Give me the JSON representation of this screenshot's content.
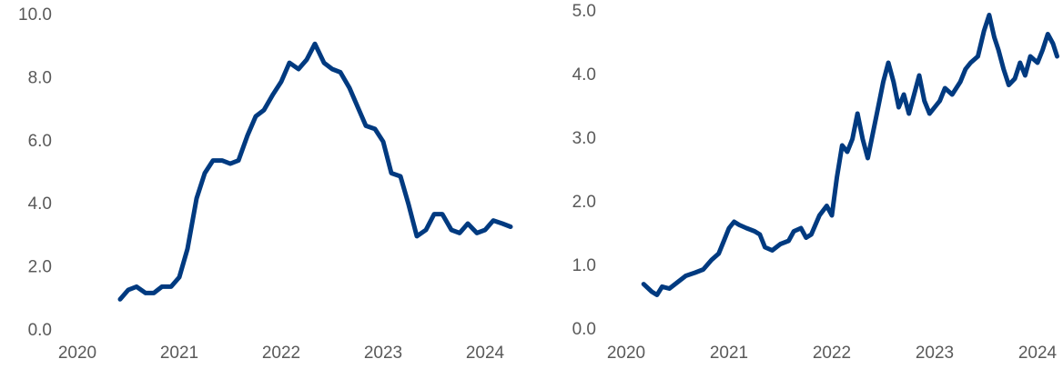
{
  "chart_data": [
    {
      "type": "line",
      "color": "#003a80",
      "xlim": [
        2020,
        2024.3
      ],
      "xticks": [
        2020,
        2021,
        2022,
        2023,
        2024
      ],
      "ylim": [
        0,
        10
      ],
      "yticks": [
        {
          "value": 0,
          "label": "0.0"
        },
        {
          "value": 2,
          "label": "2.0"
        },
        {
          "value": 4,
          "label": "4.0"
        },
        {
          "value": 6,
          "label": "6.0"
        },
        {
          "value": 8,
          "label": "8.0"
        },
        {
          "value": 10,
          "label": "10.0"
        }
      ],
      "grid": false,
      "x": [
        2020.42,
        2020.5,
        2020.58,
        2020.67,
        2020.75,
        2020.83,
        2020.92,
        2021.0,
        2021.08,
        2021.17,
        2021.25,
        2021.33,
        2021.42,
        2021.5,
        2021.58,
        2021.67,
        2021.75,
        2021.83,
        2021.92,
        2022.0,
        2022.08,
        2022.17,
        2022.25,
        2022.33,
        2022.42,
        2022.5,
        2022.58,
        2022.67,
        2022.75,
        2022.83,
        2022.92,
        2023.0,
        2023.08,
        2023.17,
        2023.25,
        2023.33,
        2023.42,
        2023.5,
        2023.58,
        2023.67,
        2023.75,
        2023.83,
        2023.92,
        2024.0,
        2024.08,
        2024.17,
        2024.25
      ],
      "values": [
        1.0,
        1.3,
        1.4,
        1.2,
        1.2,
        1.4,
        1.4,
        1.7,
        2.6,
        4.2,
        5.0,
        5.4,
        5.4,
        5.3,
        5.4,
        6.2,
        6.8,
        7.0,
        7.5,
        7.9,
        8.5,
        8.3,
        8.6,
        9.1,
        8.5,
        8.3,
        8.2,
        7.7,
        7.1,
        6.5,
        6.4,
        6.0,
        5.0,
        4.9,
        4.0,
        3.0,
        3.2,
        3.7,
        3.7,
        3.2,
        3.1,
        3.4,
        3.1,
        3.2,
        3.5,
        3.4,
        3.3
      ]
    },
    {
      "type": "line",
      "color": "#003a80",
      "xlim": [
        2020,
        2024.2
      ],
      "xticks": [
        2020,
        2021,
        2022,
        2023,
        2024
      ],
      "ylim": [
        0,
        5
      ],
      "yticks": [
        {
          "value": 0,
          "label": "0.0"
        },
        {
          "value": 1,
          "label": "1.0"
        },
        {
          "value": 2,
          "label": "2.0"
        },
        {
          "value": 3,
          "label": "3.0"
        },
        {
          "value": 4,
          "label": "4.0"
        },
        {
          "value": 5,
          "label": "5.0"
        }
      ],
      "grid": false,
      "x": [
        2020.17,
        2020.25,
        2020.3,
        2020.35,
        2020.42,
        2020.5,
        2020.58,
        2020.67,
        2020.75,
        2020.83,
        2020.9,
        2020.95,
        2021.0,
        2021.05,
        2021.1,
        2021.17,
        2021.25,
        2021.3,
        2021.35,
        2021.42,
        2021.5,
        2021.58,
        2021.63,
        2021.7,
        2021.75,
        2021.8,
        2021.88,
        2021.95,
        2022.0,
        2022.05,
        2022.1,
        2022.15,
        2022.2,
        2022.25,
        2022.3,
        2022.35,
        2022.4,
        2022.45,
        2022.5,
        2022.55,
        2022.6,
        2022.65,
        2022.7,
        2022.75,
        2022.8,
        2022.85,
        2022.9,
        2022.95,
        2023.0,
        2023.05,
        2023.1,
        2023.17,
        2023.25,
        2023.3,
        2023.35,
        2023.42,
        2023.48,
        2023.53,
        2023.58,
        2023.62,
        2023.67,
        2023.72,
        2023.78,
        2023.83,
        2023.88,
        2023.93,
        2024.0,
        2024.05,
        2024.1,
        2024.15,
        2024.19
      ],
      "values": [
        0.72,
        0.6,
        0.55,
        0.68,
        0.65,
        0.75,
        0.85,
        0.9,
        0.95,
        1.1,
        1.2,
        1.4,
        1.6,
        1.7,
        1.65,
        1.6,
        1.55,
        1.5,
        1.3,
        1.25,
        1.35,
        1.4,
        1.55,
        1.6,
        1.45,
        1.5,
        1.8,
        1.95,
        1.8,
        2.4,
        2.9,
        2.8,
        3.0,
        3.4,
        3.0,
        2.7,
        3.1,
        3.5,
        3.9,
        4.2,
        3.9,
        3.5,
        3.7,
        3.4,
        3.7,
        4.0,
        3.6,
        3.4,
        3.5,
        3.6,
        3.8,
        3.7,
        3.9,
        4.1,
        4.2,
        4.3,
        4.7,
        4.95,
        4.6,
        4.4,
        4.1,
        3.85,
        3.95,
        4.2,
        4.0,
        4.3,
        4.2,
        4.4,
        4.65,
        4.5,
        4.3
      ]
    }
  ]
}
